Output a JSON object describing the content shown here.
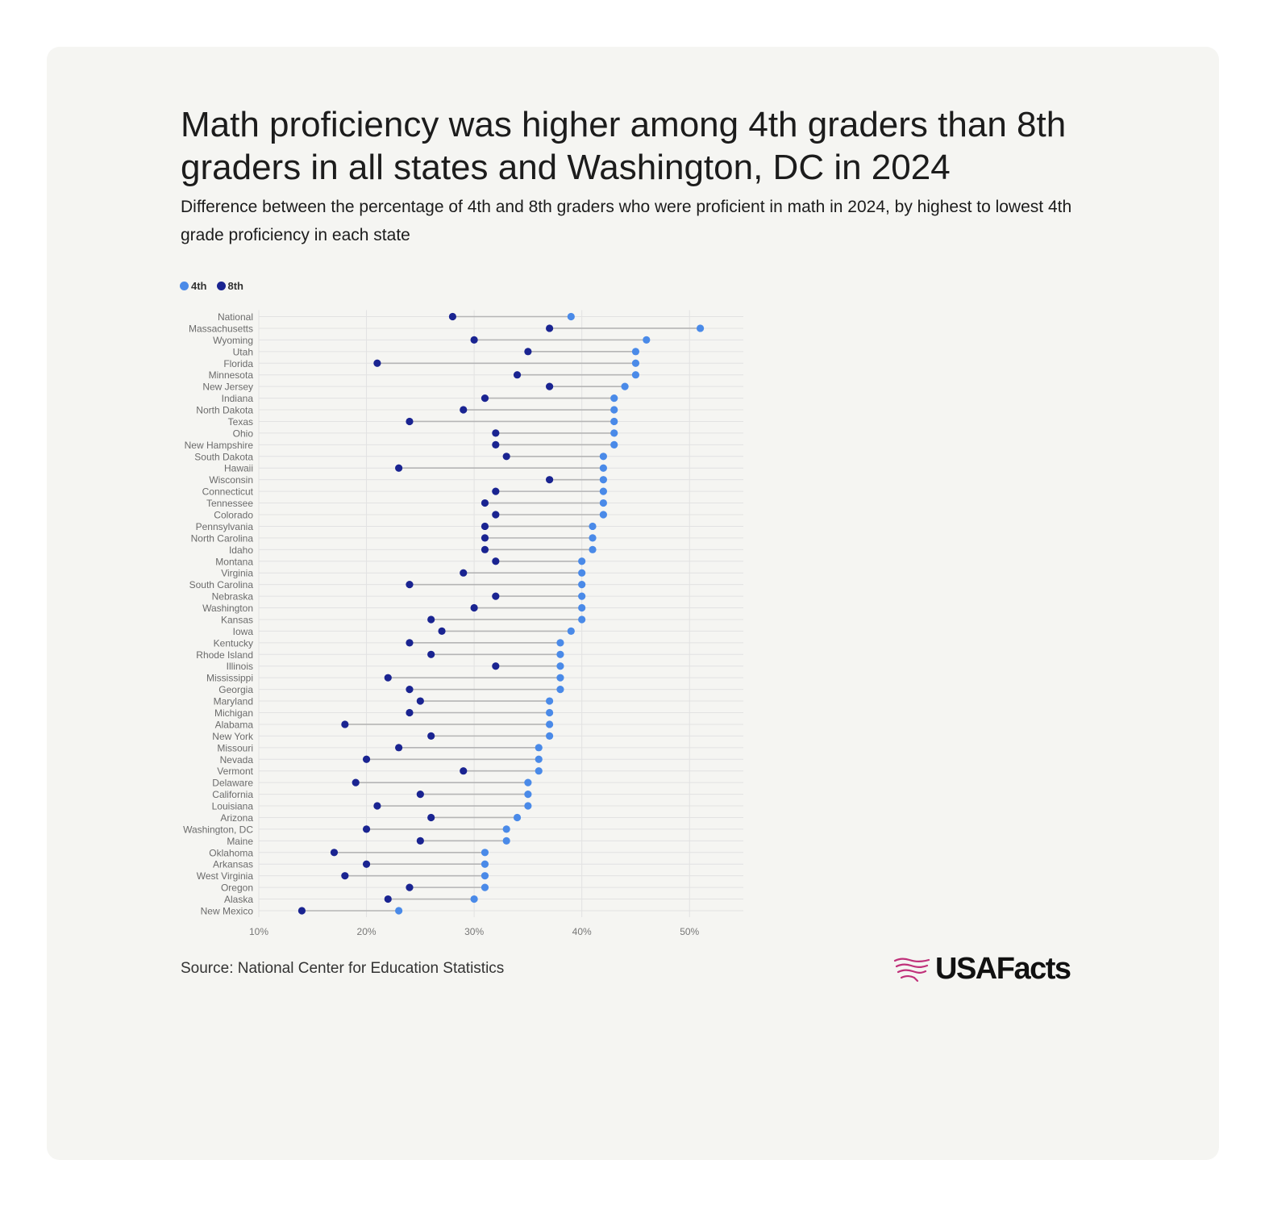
{
  "header": {
    "title": "Math proficiency was higher among 4th graders than 8th graders in all states and Washington, DC in 2024",
    "subtitle": "Difference between the percentage of 4th and 8th graders who were proficient in math in 2024, by highest to lowest 4th grade proficiency in each state"
  },
  "legend": [
    {
      "label": "4th",
      "color": "#4a8ae8"
    },
    {
      "label": "8th",
      "color": "#1a2491"
    }
  ],
  "footer": {
    "source": "Source: National Center for Education Statistics",
    "logo_text": "USAFacts"
  },
  "colors": {
    "grade4": "#4a8ae8",
    "grade8": "#1a2491",
    "connector": "#b5b5b5",
    "grid": "#e2e2e2",
    "logo_accent": "#c0317a"
  },
  "chart_data": {
    "type": "dumbbell",
    "title": "Math proficiency was higher among 4th graders than 8th graders in all states and Washington, DC in 2024",
    "xlabel": "",
    "ylabel": "",
    "xlim": [
      10,
      55
    ],
    "x_ticks": [
      "10%",
      "20%",
      "30%",
      "40%",
      "50%"
    ],
    "x_tick_values": [
      10,
      20,
      30,
      40,
      50
    ],
    "grid": true,
    "legend_position": "top-left",
    "series": [
      {
        "name": "4th"
      },
      {
        "name": "8th"
      }
    ],
    "rows": [
      {
        "state": "National",
        "g4": 39,
        "g8": 28
      },
      {
        "state": "Massachusetts",
        "g4": 51,
        "g8": 37
      },
      {
        "state": "Wyoming",
        "g4": 46,
        "g8": 30
      },
      {
        "state": "Utah",
        "g4": 45,
        "g8": 35
      },
      {
        "state": "Florida",
        "g4": 45,
        "g8": 21
      },
      {
        "state": "Minnesota",
        "g4": 45,
        "g8": 34
      },
      {
        "state": "New Jersey",
        "g4": 44,
        "g8": 37
      },
      {
        "state": "Indiana",
        "g4": 43,
        "g8": 31
      },
      {
        "state": "North Dakota",
        "g4": 43,
        "g8": 29
      },
      {
        "state": "Texas",
        "g4": 43,
        "g8": 24
      },
      {
        "state": "Ohio",
        "g4": 43,
        "g8": 32
      },
      {
        "state": "New Hampshire",
        "g4": 43,
        "g8": 32
      },
      {
        "state": "South Dakota",
        "g4": 42,
        "g8": 33
      },
      {
        "state": "Hawaii",
        "g4": 42,
        "g8": 23
      },
      {
        "state": "Wisconsin",
        "g4": 42,
        "g8": 37
      },
      {
        "state": "Connecticut",
        "g4": 42,
        "g8": 32
      },
      {
        "state": "Tennessee",
        "g4": 42,
        "g8": 31
      },
      {
        "state": "Colorado",
        "g4": 42,
        "g8": 32
      },
      {
        "state": "Pennsylvania",
        "g4": 41,
        "g8": 31
      },
      {
        "state": "North Carolina",
        "g4": 41,
        "g8": 31
      },
      {
        "state": "Idaho",
        "g4": 41,
        "g8": 31
      },
      {
        "state": "Montana",
        "g4": 40,
        "g8": 32
      },
      {
        "state": "Virginia",
        "g4": 40,
        "g8": 29
      },
      {
        "state": "South Carolina",
        "g4": 40,
        "g8": 24
      },
      {
        "state": "Nebraska",
        "g4": 40,
        "g8": 32
      },
      {
        "state": "Washington",
        "g4": 40,
        "g8": 30
      },
      {
        "state": "Kansas",
        "g4": 40,
        "g8": 26
      },
      {
        "state": "Iowa",
        "g4": 39,
        "g8": 27
      },
      {
        "state": "Kentucky",
        "g4": 38,
        "g8": 24
      },
      {
        "state": "Rhode Island",
        "g4": 38,
        "g8": 26
      },
      {
        "state": "Illinois",
        "g4": 38,
        "g8": 32
      },
      {
        "state": "Mississippi",
        "g4": 38,
        "g8": 22
      },
      {
        "state": "Georgia",
        "g4": 38,
        "g8": 24
      },
      {
        "state": "Maryland",
        "g4": 37,
        "g8": 25
      },
      {
        "state": "Michigan",
        "g4": 37,
        "g8": 24
      },
      {
        "state": "Alabama",
        "g4": 37,
        "g8": 18
      },
      {
        "state": "New York",
        "g4": 37,
        "g8": 26
      },
      {
        "state": "Missouri",
        "g4": 36,
        "g8": 23
      },
      {
        "state": "Nevada",
        "g4": 36,
        "g8": 20
      },
      {
        "state": "Vermont",
        "g4": 36,
        "g8": 29
      },
      {
        "state": "Delaware",
        "g4": 35,
        "g8": 19
      },
      {
        "state": "California",
        "g4": 35,
        "g8": 25
      },
      {
        "state": "Louisiana",
        "g4": 35,
        "g8": 21
      },
      {
        "state": "Arizona",
        "g4": 34,
        "g8": 26
      },
      {
        "state": "Washington, DC",
        "g4": 33,
        "g8": 20
      },
      {
        "state": "Maine",
        "g4": 33,
        "g8": 25
      },
      {
        "state": "Oklahoma",
        "g4": 31,
        "g8": 17
      },
      {
        "state": "Arkansas",
        "g4": 31,
        "g8": 20
      },
      {
        "state": "West Virginia",
        "g4": 31,
        "g8": 18
      },
      {
        "state": "Oregon",
        "g4": 31,
        "g8": 24
      },
      {
        "state": "Alaska",
        "g4": 30,
        "g8": 22
      },
      {
        "state": "New Mexico",
        "g4": 23,
        "g8": 14
      }
    ]
  }
}
